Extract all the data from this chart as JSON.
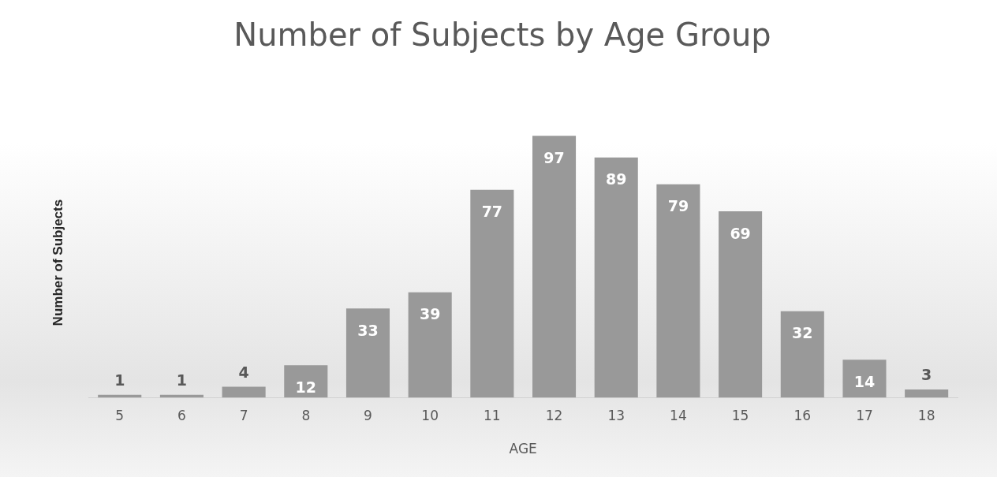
{
  "chart_data": {
    "type": "bar",
    "title": "Number of Subjects by Age Group",
    "xlabel": "AGE",
    "ylabel": "Number of Subjects",
    "categories": [
      "5",
      "6",
      "7",
      "8",
      "9",
      "10",
      "11",
      "12",
      "13",
      "14",
      "15",
      "16",
      "17",
      "18"
    ],
    "values": [
      1,
      1,
      4,
      12,
      33,
      39,
      77,
      97,
      89,
      79,
      69,
      32,
      14,
      3
    ],
    "color": "#999999",
    "data_labels": true,
    "tick_labels": "x",
    "grid": false,
    "legend": false
  }
}
